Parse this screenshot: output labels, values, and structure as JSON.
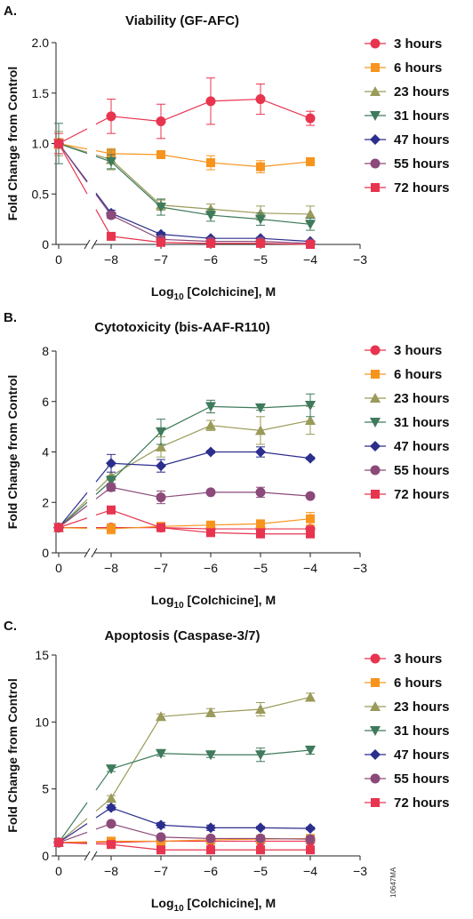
{
  "figure_code": "10647MA",
  "colors": {
    "3 hours": "#e8344e",
    "6 hours": "#f7941d",
    "23 hours": "#9a9a5a",
    "31 hours": "#3f7a5c",
    "47 hours": "#2b2e8c",
    "55 hours": "#8b4a7a",
    "72 hours": "#e8344e"
  },
  "markers": {
    "3 hours": "circle",
    "6 hours": "square",
    "23 hours": "triangle-up",
    "31 hours": "triangle-down",
    "47 hours": "diamond",
    "55 hours": "circle",
    "72 hours": "square"
  },
  "chart_data": [
    {
      "panel_label": "A.",
      "type": "line",
      "title": "Viability (GF-AFC)",
      "xlabel_main": "Log",
      "xlabel_sub": "10",
      "xlabel_rest": " [Colchicine], M",
      "ylabel": "Fold Change from Control",
      "xlim": [
        -3,
        0
      ],
      "x_ticks": [
        "0",
        "−8",
        "−7",
        "−6",
        "−5",
        "−4",
        "−3"
      ],
      "ylim": [
        0,
        2.0
      ],
      "y_ticks": [
        "0",
        "0.5",
        "1.0",
        "1.5",
        "2.0"
      ],
      "y_tick_values": [
        0,
        0.5,
        1.0,
        1.5,
        2.0
      ],
      "x_values": [
        "0",
        -8,
        -7,
        -6,
        -5,
        -4
      ],
      "legend_position": "top-right",
      "series": [
        {
          "name": "3 hours",
          "values": [
            1.0,
            1.27,
            1.22,
            1.42,
            1.44,
            1.25
          ],
          "errors": [
            0.1,
            0.17,
            0.17,
            0.23,
            0.15,
            0.07
          ]
        },
        {
          "name": "6 hours",
          "values": [
            1.0,
            0.9,
            0.89,
            0.81,
            0.77,
            0.82
          ],
          "errors": [
            0.05,
            0.05,
            0.02,
            0.07,
            0.06,
            0.03
          ]
        },
        {
          "name": "23 hours",
          "values": [
            1.0,
            0.84,
            0.39,
            0.35,
            0.31,
            0.3
          ],
          "errors": [
            0.12,
            0.1,
            0.05,
            0.05,
            0.07,
            0.08
          ]
        },
        {
          "name": "31 hours",
          "values": [
            1.0,
            0.82,
            0.37,
            0.29,
            0.25,
            0.2
          ],
          "errors": [
            0.2,
            0.07,
            0.08,
            0.06,
            0.06,
            0.06
          ]
        },
        {
          "name": "47 hours",
          "values": [
            1.0,
            0.31,
            0.1,
            0.06,
            0.06,
            0.03
          ],
          "errors": [
            0.03,
            0.03,
            0.02,
            0.01,
            0.01,
            0.01
          ]
        },
        {
          "name": "55 hours",
          "values": [
            1.0,
            0.29,
            0.05,
            0.03,
            0.03,
            0.01
          ],
          "errors": [
            0.03,
            0.03,
            0.01,
            0.01,
            0.01,
            0.01
          ]
        },
        {
          "name": "72 hours",
          "values": [
            1.0,
            0.08,
            0.02,
            0.01,
            0.01,
            0.0
          ],
          "errors": [
            0.03,
            0.02,
            0.01,
            0.0,
            0.0,
            0.0
          ]
        }
      ]
    },
    {
      "panel_label": "B.",
      "type": "line",
      "title": "Cytotoxicity (bis-AAF-R110)",
      "xlabel_main": "Log",
      "xlabel_sub": "10",
      "xlabel_rest": " [Colchicine], M",
      "ylabel": "Fold Change from Control",
      "xlim": [
        -3,
        0
      ],
      "x_ticks": [
        "0",
        "−8",
        "−7",
        "−6",
        "−5",
        "−4",
        "−3"
      ],
      "ylim": [
        0,
        8
      ],
      "y_ticks": [
        "0",
        "2",
        "4",
        "6",
        "8"
      ],
      "y_tick_values": [
        0,
        2,
        4,
        6,
        8
      ],
      "x_values": [
        "0",
        -8,
        -7,
        -6,
        -5,
        -4
      ],
      "legend_position": "top-right",
      "series": [
        {
          "name": "3 hours",
          "values": [
            1.0,
            1.0,
            1.0,
            0.95,
            0.95,
            0.95
          ],
          "errors": [
            0.1,
            0.1,
            0.05,
            0.05,
            0.05,
            0.05
          ]
        },
        {
          "name": "6 hours",
          "values": [
            1.0,
            0.95,
            1.05,
            1.1,
            1.15,
            1.35
          ],
          "errors": [
            0.05,
            0.2,
            0.1,
            0.1,
            0.1,
            0.25
          ]
        },
        {
          "name": "23 hours",
          "values": [
            1.0,
            3.05,
            4.2,
            5.05,
            4.85,
            5.25
          ],
          "errors": [
            0.1,
            0.4,
            0.4,
            0.2,
            0.55,
            0.55
          ]
        },
        {
          "name": "31 hours",
          "values": [
            1.0,
            2.85,
            4.8,
            5.8,
            5.75,
            5.85
          ],
          "errors": [
            0.1,
            0.2,
            0.5,
            0.25,
            0.1,
            0.45
          ]
        },
        {
          "name": "47 hours",
          "values": [
            1.0,
            3.55,
            3.45,
            4.0,
            4.0,
            3.75
          ],
          "errors": [
            0.1,
            0.35,
            0.25,
            0.05,
            0.2,
            0.05
          ]
        },
        {
          "name": "55 hours",
          "values": [
            1.0,
            2.6,
            2.2,
            2.4,
            2.4,
            2.25
          ],
          "errors": [
            0.1,
            0.15,
            0.25,
            0.05,
            0.2,
            0.05
          ]
        },
        {
          "name": "72 hours",
          "values": [
            1.0,
            1.7,
            1.0,
            0.8,
            0.75,
            0.75
          ],
          "errors": [
            0.1,
            0.1,
            0.05,
            0.05,
            0.05,
            0.05
          ]
        }
      ]
    },
    {
      "panel_label": "C.",
      "type": "line",
      "title": "Apoptosis (Caspase-3/7)",
      "xlabel_main": "Log",
      "xlabel_sub": "10",
      "xlabel_rest": " [Colchicine], M",
      "ylabel": "Fold Change from Control",
      "xlim": [
        -3,
        0
      ],
      "x_ticks": [
        "0",
        "−8",
        "−7",
        "−6",
        "−5",
        "−4",
        "−3"
      ],
      "ylim": [
        0,
        15
      ],
      "y_ticks": [
        "0",
        "5",
        "10",
        "15"
      ],
      "y_tick_values": [
        0,
        5,
        10,
        15
      ],
      "x_values": [
        "0",
        -8,
        -7,
        -6,
        -5,
        -4
      ],
      "legend_position": "top-right",
      "series": [
        {
          "name": "3 hours",
          "values": [
            1.0,
            1.0,
            1.1,
            1.1,
            1.1,
            1.1
          ],
          "errors": [
            0.1,
            0.1,
            0.1,
            0.1,
            0.1,
            0.1
          ]
        },
        {
          "name": "6 hours",
          "values": [
            1.0,
            1.1,
            1.1,
            1.2,
            1.25,
            1.3
          ],
          "errors": [
            0.1,
            0.1,
            0.1,
            0.1,
            0.1,
            0.1
          ]
        },
        {
          "name": "23 hours",
          "values": [
            1.0,
            4.3,
            10.4,
            10.7,
            10.95,
            11.85
          ],
          "errors": [
            0.1,
            0.2,
            0.2,
            0.3,
            0.5,
            0.3
          ]
        },
        {
          "name": "31 hours",
          "values": [
            1.0,
            6.5,
            7.65,
            7.55,
            7.55,
            7.9
          ],
          "errors": [
            0.1,
            0.2,
            0.2,
            0.2,
            0.5,
            0.3
          ]
        },
        {
          "name": "47 hours",
          "values": [
            1.0,
            3.6,
            2.3,
            2.1,
            2.1,
            2.05
          ],
          "errors": [
            0.1,
            0.2,
            0.2,
            0.2,
            0.1,
            0.1
          ]
        },
        {
          "name": "55 hours",
          "values": [
            1.0,
            2.4,
            1.4,
            1.3,
            1.3,
            1.25
          ],
          "errors": [
            0.1,
            0.1,
            0.1,
            0.1,
            0.1,
            0.1
          ]
        },
        {
          "name": "72 hours",
          "values": [
            1.0,
            0.85,
            0.45,
            0.45,
            0.45,
            0.45
          ],
          "errors": [
            0.05,
            0.05,
            0.05,
            0.05,
            0.05,
            0.05
          ]
        }
      ]
    }
  ]
}
